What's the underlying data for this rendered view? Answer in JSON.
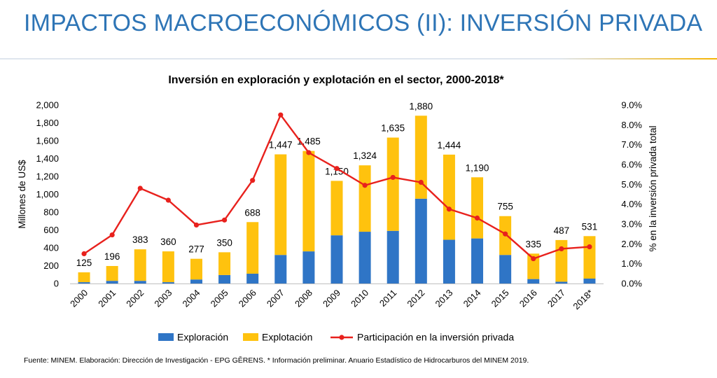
{
  "slide": {
    "title": "IMPACTOS MACROECONÓMICOS (II): INVERSIÓN PRIVADA",
    "source": "Fuente: MINEM. Elaboración: Dirección de Investigación - EPG GĚRENS. * Información preliminar. Anuario Estadístico de Hidrocarburos del MINEM 2019."
  },
  "colors": {
    "title": "#2e75b6",
    "exploracion": "#2f75c6",
    "explotacion": "#ffc20e",
    "participacion": "#e8211d"
  },
  "chart_data": {
    "type": "bar",
    "stacked": true,
    "title": "Inversión en exploración y explotación en el sector, 2000-2018*",
    "xlabel": "",
    "ylabel": "Millones de US$",
    "y2label": "% en la inversión privada total",
    "ylim": [
      0,
      2000
    ],
    "y2lim": [
      0,
      9
    ],
    "yticks": [
      "0",
      "200",
      "400",
      "600",
      "800",
      "1,000",
      "1,200",
      "1,400",
      "1,600",
      "1,800",
      "2,000"
    ],
    "y2ticks": [
      "0.0%",
      "1.0%",
      "2.0%",
      "3.0%",
      "4.0%",
      "5.0%",
      "6.0%",
      "7.0%",
      "8.0%",
      "9.0%"
    ],
    "categories": [
      "2000",
      "2001",
      "2002",
      "2003",
      "2004",
      "2005",
      "2006",
      "2007",
      "2008",
      "2009",
      "2010",
      "2011",
      "2012",
      "2013",
      "2014",
      "2015",
      "2016",
      "2017",
      "2018*"
    ],
    "totals_labels": [
      "125",
      "196",
      "383",
      "360",
      "277",
      "350",
      "688",
      "1,447",
      "1,485",
      "1,150",
      "1,324",
      "1,635",
      "1,880",
      "1,444",
      "1,190",
      "755",
      "335",
      "487",
      "531"
    ],
    "series": [
      {
        "name": "Exploración",
        "type": "bar",
        "axis": "left",
        "values": [
          15,
          30,
          30,
          15,
          45,
          95,
          110,
          320,
          360,
          540,
          580,
          590,
          950,
          490,
          505,
          320,
          50,
          20,
          55
        ]
      },
      {
        "name": "Explotación",
        "type": "bar",
        "axis": "left",
        "values": [
          110,
          166,
          353,
          345,
          232,
          255,
          578,
          1127,
          1125,
          610,
          744,
          1045,
          930,
          954,
          685,
          435,
          285,
          467,
          476
        ]
      },
      {
        "name": "Participación en la inversión privada",
        "type": "line",
        "axis": "right",
        "values": [
          1.5,
          2.45,
          4.8,
          4.2,
          2.95,
          3.2,
          5.2,
          8.5,
          6.6,
          5.8,
          4.95,
          5.35,
          5.1,
          3.75,
          3.3,
          2.5,
          1.25,
          1.75,
          1.85
        ]
      }
    ],
    "legend": "bottom",
    "grid": false
  }
}
